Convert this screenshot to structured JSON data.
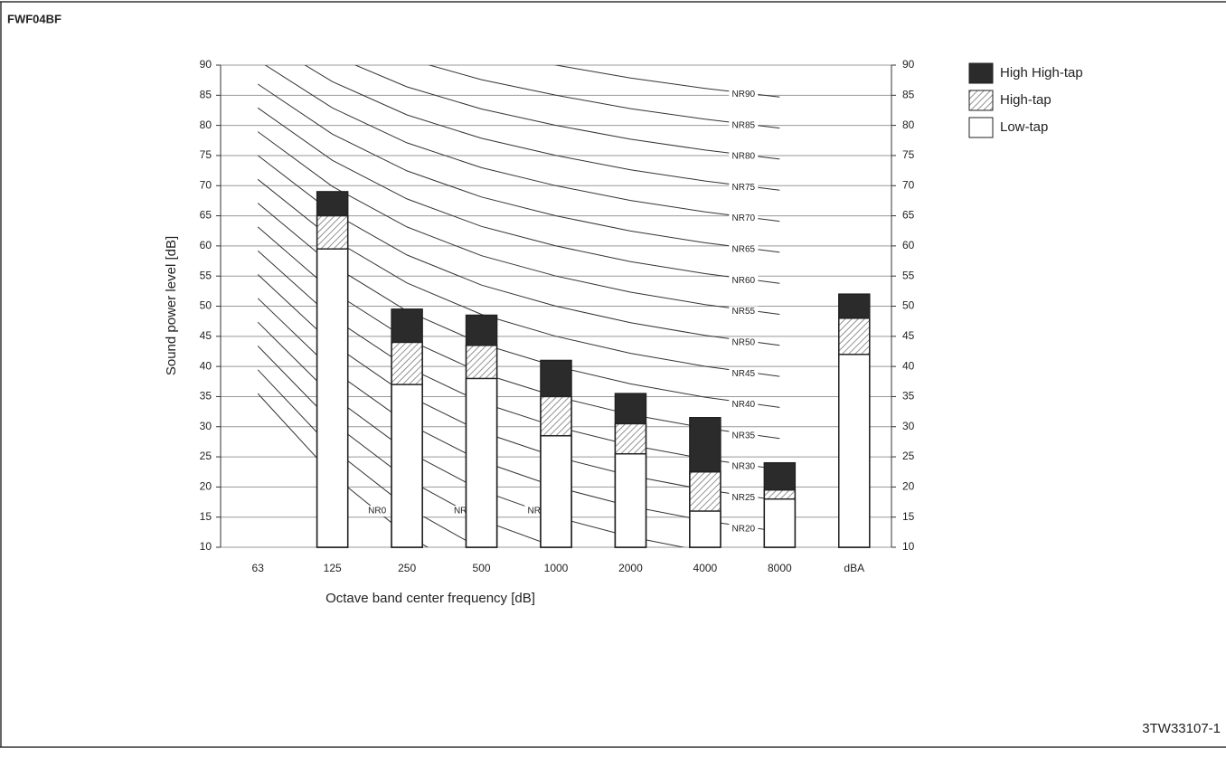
{
  "header": "FWF04BF",
  "footer": "3TW33107-1",
  "chart_data": {
    "type": "bar",
    "x_label": "Octave band center frequency [dB]",
    "y_label": "Sound power level [dB]",
    "categories": [
      "63",
      "125",
      "250",
      "500",
      "1000",
      "2000",
      "4000",
      "8000",
      "dBA"
    ],
    "series": [
      {
        "name": "High High-tap",
        "color": "#2b2b2b",
        "values": [
          null,
          69,
          49.5,
          48.5,
          41,
          35.5,
          31.5,
          24,
          52
        ]
      },
      {
        "name": "High-tap",
        "color": "#777777",
        "values": [
          null,
          65,
          44,
          43.5,
          35,
          30.5,
          22.5,
          19.5,
          48
        ]
      },
      {
        "name": "Low-tap",
        "color": "#ffffff",
        "values": [
          null,
          59.5,
          37,
          38,
          28.5,
          25.5,
          16,
          18,
          42
        ]
      }
    ],
    "ylim": [
      10,
      90
    ],
    "yticks": [
      10,
      15,
      20,
      25,
      30,
      35,
      40,
      45,
      50,
      55,
      60,
      65,
      70,
      75,
      80,
      85,
      90
    ],
    "grid": true,
    "nr_curves": [
      {
        "label": "NR0",
        "value": 0
      },
      {
        "label": "NR5",
        "value": 5
      },
      {
        "label": "NR10",
        "value": 10
      },
      {
        "label": "NR15",
        "value": 15
      },
      {
        "label": "NR20",
        "value": 20
      },
      {
        "label": "NR25",
        "value": 25
      },
      {
        "label": "NR30",
        "value": 30
      },
      {
        "label": "NR35",
        "value": 35
      },
      {
        "label": "NR40",
        "value": 40
      },
      {
        "label": "NR45",
        "value": 45
      },
      {
        "label": "NR50",
        "value": 50
      },
      {
        "label": "NR55",
        "value": 55
      },
      {
        "label": "NR60",
        "value": 60
      },
      {
        "label": "NR65",
        "value": 65
      },
      {
        "label": "NR70",
        "value": 70
      },
      {
        "label": "NR75",
        "value": 75
      },
      {
        "label": "NR80",
        "value": 80
      },
      {
        "label": "NR85",
        "value": 85
      },
      {
        "label": "NR90",
        "value": 90
      }
    ]
  }
}
